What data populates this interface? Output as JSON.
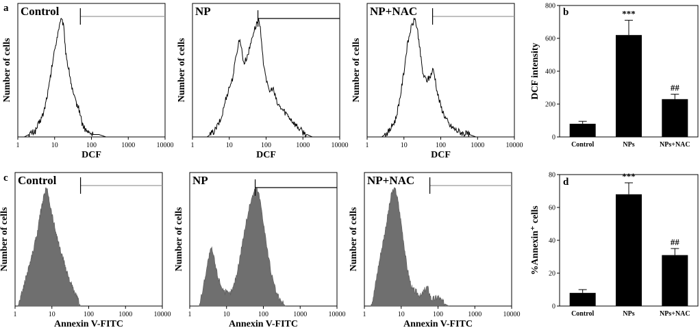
{
  "chart_data": [
    {
      "type": "histogram",
      "panel": "a",
      "title": "Control",
      "xlabel": "DCF",
      "ylabel": "Number of cells",
      "x_scale": "log",
      "xlim": [
        1,
        10000
      ],
      "x_ticks": [
        "1",
        "10",
        "100",
        "1000",
        "10000"
      ],
      "style": "line",
      "gate_marker_x": 50,
      "peaks": [
        {
          "x": 16,
          "h": 1.0,
          "w": 0.2
        }
      ],
      "profile": [
        [
          1.5,
          0.0
        ],
        [
          3,
          0.05
        ],
        [
          5,
          0.2
        ],
        [
          7,
          0.42
        ],
        [
          9,
          0.65
        ],
        [
          11,
          0.8
        ],
        [
          13,
          0.92
        ],
        [
          15,
          0.98
        ],
        [
          16,
          1.0
        ],
        [
          18,
          0.9
        ],
        [
          20,
          0.72
        ],
        [
          23,
          0.6
        ],
        [
          26,
          0.52
        ],
        [
          30,
          0.4
        ],
        [
          35,
          0.32
        ],
        [
          40,
          0.28
        ],
        [
          48,
          0.22
        ],
        [
          55,
          0.12
        ],
        [
          65,
          0.07
        ],
        [
          80,
          0.04
        ],
        [
          110,
          0.02
        ],
        [
          160,
          0.02
        ],
        [
          250,
          0.0
        ]
      ]
    },
    {
      "type": "histogram",
      "panel": "a",
      "title": "NP",
      "xlabel": "DCF",
      "ylabel": "Number of cells",
      "x_scale": "log",
      "xlim": [
        1,
        10000
      ],
      "x_ticks": [
        "1",
        "10",
        "100",
        "1000",
        "10000"
      ],
      "style": "line",
      "gate_marker_x": 60,
      "profile": [
        [
          2.5,
          0.0
        ],
        [
          4,
          0.05
        ],
        [
          6,
          0.15
        ],
        [
          8,
          0.32
        ],
        [
          10,
          0.42
        ],
        [
          12,
          0.48
        ],
        [
          14,
          0.6
        ],
        [
          16,
          0.72
        ],
        [
          18,
          0.8
        ],
        [
          20,
          0.82
        ],
        [
          22,
          0.72
        ],
        [
          25,
          0.62
        ],
        [
          28,
          0.65
        ],
        [
          32,
          0.7
        ],
        [
          36,
          0.75
        ],
        [
          42,
          0.85
        ],
        [
          50,
          0.92
        ],
        [
          58,
          0.97
        ],
        [
          62,
          1.0
        ],
        [
          70,
          0.9
        ],
        [
          80,
          0.68
        ],
        [
          95,
          0.55
        ],
        [
          110,
          0.42
        ],
        [
          130,
          0.38
        ],
        [
          150,
          0.42
        ],
        [
          170,
          0.36
        ],
        [
          200,
          0.28
        ],
        [
          260,
          0.24
        ],
        [
          350,
          0.2
        ],
        [
          450,
          0.16
        ],
        [
          600,
          0.11
        ],
        [
          800,
          0.07
        ],
        [
          1000,
          0.04
        ],
        [
          1300,
          0.02
        ],
        [
          1800,
          0.0
        ]
      ]
    },
    {
      "type": "histogram",
      "panel": "a",
      "title": "NP+NAC",
      "xlabel": "DCF",
      "ylabel": "Number of cells",
      "x_scale": "log",
      "xlim": [
        1,
        10000
      ],
      "x_ticks": [
        "1",
        "10",
        "100",
        "1000",
        "10000"
      ],
      "style": "line",
      "gate_marker_x": 60,
      "profile": [
        [
          2.5,
          0.0
        ],
        [
          4,
          0.05
        ],
        [
          6,
          0.15
        ],
        [
          8,
          0.35
        ],
        [
          10,
          0.55
        ],
        [
          12,
          0.75
        ],
        [
          15,
          0.9
        ],
        [
          18,
          0.97
        ],
        [
          20,
          1.0
        ],
        [
          24,
          0.88
        ],
        [
          28,
          0.7
        ],
        [
          32,
          0.55
        ],
        [
          36,
          0.5
        ],
        [
          42,
          0.48
        ],
        [
          50,
          0.5
        ],
        [
          58,
          0.55
        ],
        [
          62,
          0.57
        ],
        [
          70,
          0.5
        ],
        [
          80,
          0.38
        ],
        [
          100,
          0.26
        ],
        [
          130,
          0.17
        ],
        [
          170,
          0.1
        ],
        [
          250,
          0.06
        ],
        [
          400,
          0.03
        ],
        [
          600,
          0.02
        ],
        [
          900,
          0.0
        ]
      ]
    },
    {
      "type": "bar",
      "panel": "b",
      "categories": [
        "Control",
        "NPs",
        "NPs+NAC"
      ],
      "values": [
        80,
        620,
        230
      ],
      "errors": [
        15,
        90,
        30
      ],
      "annotations": [
        "",
        "***",
        "##"
      ],
      "ylabel": "DCF intensity",
      "ylim": [
        0,
        800
      ],
      "y_ticks": [
        0,
        200,
        400,
        600,
        800
      ]
    },
    {
      "type": "histogram",
      "panel": "c",
      "title": "Control",
      "xlabel": "Annexin V-FITC",
      "ylabel": "Number of cells",
      "x_scale": "log",
      "xlim": [
        1,
        10000
      ],
      "x_ticks": [
        "1",
        "10",
        "100",
        "1000",
        "10000"
      ],
      "style": "filled",
      "gate_marker_x": 60,
      "profile": [
        [
          1.2,
          0.0
        ],
        [
          1.5,
          0.1
        ],
        [
          2,
          0.25
        ],
        [
          3,
          0.45
        ],
        [
          4,
          0.62
        ],
        [
          5,
          0.8
        ],
        [
          6,
          0.92
        ],
        [
          7,
          1.0
        ],
        [
          8,
          0.95
        ],
        [
          9,
          0.85
        ],
        [
          11,
          0.72
        ],
        [
          13,
          0.62
        ],
        [
          16,
          0.5
        ],
        [
          20,
          0.4
        ],
        [
          25,
          0.3
        ],
        [
          32,
          0.2
        ],
        [
          40,
          0.12
        ],
        [
          50,
          0.06
        ],
        [
          60,
          0.0
        ]
      ]
    },
    {
      "type": "histogram",
      "panel": "c",
      "title": "NP",
      "xlabel": "Annexin V-FITC",
      "ylabel": "Number of cells",
      "x_scale": "log",
      "xlim": [
        1,
        10000
      ],
      "x_ticks": [
        "1",
        "10",
        "100",
        "1000",
        "10000"
      ],
      "style": "filled",
      "gate_marker_x": 60,
      "profile": [
        [
          1.8,
          0.0
        ],
        [
          2.3,
          0.15
        ],
        [
          2.8,
          0.3
        ],
        [
          3.5,
          0.45
        ],
        [
          4,
          0.48
        ],
        [
          4.6,
          0.4
        ],
        [
          5.5,
          0.28
        ],
        [
          7,
          0.18
        ],
        [
          9,
          0.12
        ],
        [
          12,
          0.1
        ],
        [
          15,
          0.15
        ],
        [
          20,
          0.3
        ],
        [
          25,
          0.48
        ],
        [
          30,
          0.62
        ],
        [
          38,
          0.78
        ],
        [
          45,
          0.88
        ],
        [
          55,
          0.96
        ],
        [
          65,
          1.0
        ],
        [
          75,
          0.95
        ],
        [
          90,
          0.82
        ],
        [
          110,
          0.62
        ],
        [
          140,
          0.4
        ],
        [
          180,
          0.22
        ],
        [
          230,
          0.1
        ],
        [
          300,
          0.04
        ],
        [
          400,
          0.0
        ]
      ]
    },
    {
      "type": "histogram",
      "panel": "c",
      "title": "NP+NAC",
      "xlabel": "Annexin V-FITC",
      "ylabel": "Number of cells",
      "x_scale": "log",
      "xlim": [
        1,
        10000
      ],
      "x_ticks": [
        "1",
        "10",
        "100",
        "1000",
        "10000"
      ],
      "style": "filled",
      "gate_marker_x": 60,
      "profile": [
        [
          1.5,
          0.0
        ],
        [
          1.8,
          0.1
        ],
        [
          2.3,
          0.3
        ],
        [
          2.8,
          0.45
        ],
        [
          3.5,
          0.6
        ],
        [
          4.5,
          0.8
        ],
        [
          5.5,
          0.95
        ],
        [
          6.5,
          1.0
        ],
        [
          7.5,
          0.95
        ],
        [
          8.5,
          0.85
        ],
        [
          10,
          0.7
        ],
        [
          12,
          0.52
        ],
        [
          14,
          0.35
        ],
        [
          17,
          0.22
        ],
        [
          20,
          0.14
        ],
        [
          25,
          0.12
        ],
        [
          30,
          0.1
        ],
        [
          35,
          0.08
        ],
        [
          40,
          0.12
        ],
        [
          50,
          0.16
        ],
        [
          55,
          0.14
        ],
        [
          65,
          0.06
        ],
        [
          80,
          0.06
        ],
        [
          100,
          0.08
        ],
        [
          120,
          0.05
        ],
        [
          150,
          0.02
        ],
        [
          200,
          0.0
        ]
      ]
    },
    {
      "type": "bar",
      "panel": "d",
      "categories": [
        "Control",
        "NPs",
        "NPs+NAC"
      ],
      "values": [
        8,
        68,
        31
      ],
      "errors": [
        2,
        7,
        4
      ],
      "annotations": [
        "",
        "***",
        "##"
      ],
      "ylabel": "%Annexin⁺ cells",
      "ylim": [
        0,
        80
      ],
      "y_ticks": [
        0,
        20,
        40,
        60,
        80
      ]
    }
  ]
}
